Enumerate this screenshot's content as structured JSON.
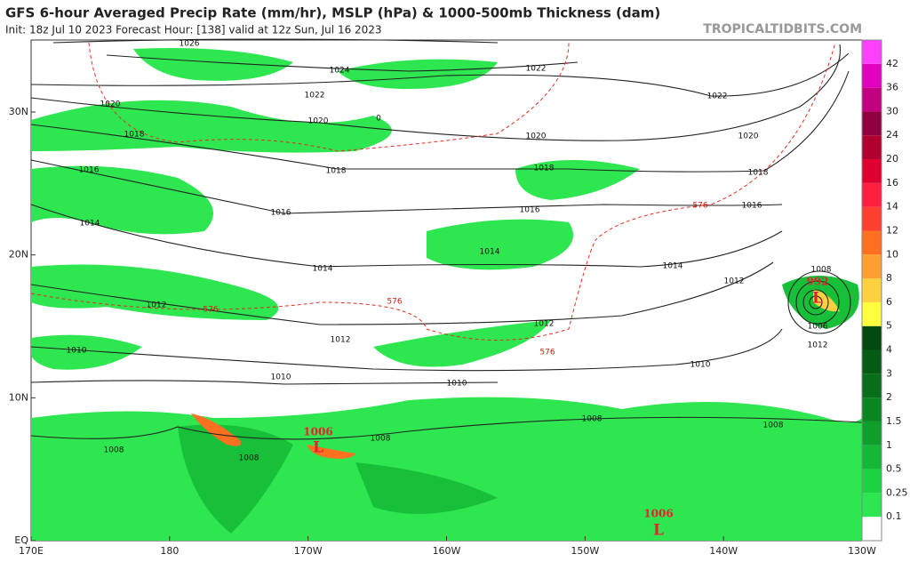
{
  "header": {
    "title": "GFS 6-hour Averaged Precip Rate (mm/hr), MSLP (hPa) & 1000-500mb Thickness (dam)",
    "subtitle": "Init: 18z Jul 10 2023   Forecast Hour: [138]   valid at 12z Sun, Jul 16 2023",
    "source": "TROPICALTIDBITS.COM"
  },
  "map": {
    "lat_labels": [
      "30N",
      "20N",
      "10N",
      "EQ"
    ],
    "lon_labels": [
      "170E",
      "180",
      "170W",
      "160W",
      "150W",
      "140W",
      "130W"
    ],
    "isobar_labels": [
      "1026",
      "1024",
      "1022",
      "1022",
      "1022",
      "1020",
      "1020",
      "1020",
      "1020",
      "1018",
      "1018",
      "1018",
      "1018",
      "1016",
      "1016",
      "1016",
      "1016",
      "1014",
      "1014",
      "1014",
      "1014",
      "1012",
      "1012",
      "1012",
      "1012",
      "1012",
      "1010",
      "1010",
      "1010",
      "1010",
      "1008",
      "1008",
      "1008",
      "1008",
      "1008",
      "1008",
      "1006"
    ],
    "thickness_labels": [
      "576",
      "576",
      "576",
      "576",
      "0"
    ],
    "centers": [
      {
        "pressure": "1006",
        "symbol": "L"
      },
      {
        "pressure": "992",
        "symbol": "L"
      },
      {
        "pressure": "1006",
        "symbol": "L"
      }
    ]
  },
  "colorbar": {
    "labels": [
      "0.1",
      "0.25",
      "0.5",
      "1",
      "1.5",
      "2",
      "3",
      "4",
      "5",
      "6",
      "8",
      "10",
      "12",
      "14",
      "16",
      "20",
      "24",
      "30",
      "36",
      "42"
    ]
  }
}
